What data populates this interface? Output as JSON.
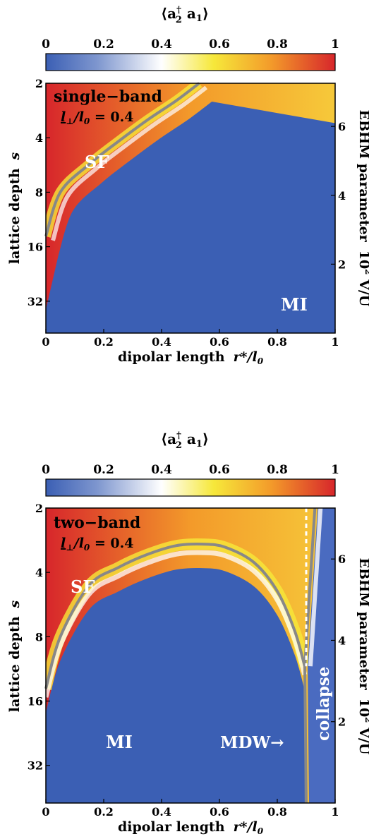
{
  "charts": [
    {
      "colorbar": {
        "title_main": "⟨a",
        "title_sup": "†",
        "title_sub": "2",
        "title_tail": " a",
        "title_sub2": "1",
        "title_close": "⟩",
        "ticks": [
          "0",
          "0.2",
          "0.4",
          "0.6",
          "0.8",
          "1"
        ],
        "range": [
          0,
          1
        ]
      },
      "panel_title": "single−band",
      "param_prefix": "l",
      "param_sub": "⊥",
      "param_mid": "/l",
      "param_sub2": "0",
      "param_value": " = 0.4",
      "region_labels": {
        "sf": "SF",
        "mi": "MI"
      },
      "xlabel_main": "dipolar length",
      "xlabel_var": "r*/l",
      "xlabel_sub": "0",
      "ylabel_main": "lattice depth",
      "ylabel_var": "s",
      "rlabel_main": "EBHM parameter",
      "rlabel_pow": "10",
      "rlabel_exp": "2",
      "rlabel_tail": " V/U",
      "x_ticks": [
        "0",
        "0.2",
        "0.4",
        "0.6",
        "0.8",
        "1"
      ],
      "y_ticks_left": [
        {
          "label": "2",
          "s": 2
        },
        {
          "label": "4",
          "s": 4
        },
        {
          "label": "8",
          "s": 8
        },
        {
          "label": "16",
          "s": 16
        },
        {
          "label": "32",
          "s": 32
        }
      ],
      "y_ticks_right": [
        {
          "label": "6",
          "v": 6
        },
        {
          "label": "4",
          "v": 4
        },
        {
          "label": "2",
          "v": 2
        }
      ]
    },
    {
      "colorbar": {
        "title_main": "⟨a",
        "title_sup": "†",
        "title_sub": "2",
        "title_tail": " a",
        "title_sub2": "1",
        "title_close": "⟩",
        "ticks": [
          "0",
          "0.2",
          "0.4",
          "0.6",
          "0.8",
          "1"
        ],
        "range": [
          0,
          1
        ]
      },
      "panel_title": "two−band",
      "param_prefix": "l",
      "param_sub": "⊥",
      "param_mid": "/l",
      "param_sub2": "0",
      "param_value": " = 0.4",
      "region_labels": {
        "sf": "SF",
        "mi": "MI",
        "mdw": "MDW→",
        "collapse": "collapse"
      },
      "xlabel_main": "dipolar length",
      "xlabel_var": "r*/l",
      "xlabel_sub": "0",
      "ylabel_main": "lattice depth",
      "ylabel_var": "s",
      "rlabel_main": "EBHM parameter",
      "rlabel_pow": "10",
      "rlabel_exp": "2",
      "rlabel_tail": " V/U",
      "x_ticks": [
        "0",
        "0.2",
        "0.4",
        "0.6",
        "0.8",
        "1"
      ],
      "y_ticks_left": [
        {
          "label": "2",
          "s": 2
        },
        {
          "label": "4",
          "s": 4
        },
        {
          "label": "8",
          "s": 8
        },
        {
          "label": "16",
          "s": 16
        },
        {
          "label": "32",
          "s": 32
        }
      ],
      "y_ticks_right": [
        {
          "label": "6",
          "v": 6
        },
        {
          "label": "4",
          "v": 4
        },
        {
          "label": "2",
          "v": 2
        }
      ]
    }
  ],
  "chart_data": [
    {
      "type": "heatmap",
      "colormap": [
        "#3b5fb4",
        "#ffffff",
        "#f6e83a",
        "#f39a2a",
        "#d7262b"
      ],
      "xlim": [
        0,
        1
      ],
      "x": "dipolar length r*/l0",
      "y": "lattice depth s",
      "y_ticks": [
        2,
        4,
        8,
        16,
        32
      ],
      "y2_ticks": [
        2,
        4,
        6
      ],
      "boundary": [
        {
          "x": 0.0,
          "s": 14
        },
        {
          "x": 0.05,
          "s": 8
        },
        {
          "x": 0.15,
          "s": 5.6
        },
        {
          "x": 0.25,
          "s": 4.2
        },
        {
          "x": 0.35,
          "s": 3.2
        },
        {
          "x": 0.45,
          "s": 2.5
        },
        {
          "x": 0.53,
          "s": 2.0
        }
      ]
    },
    {
      "type": "heatmap",
      "colormap": [
        "#3b5fb4",
        "#ffffff",
        "#f6e83a",
        "#f39a2a",
        "#d7262b"
      ],
      "xlim": [
        0,
        1
      ],
      "x": "dipolar length r*/l0",
      "y": "lattice depth s",
      "y_ticks": [
        2,
        4,
        8,
        16,
        32
      ],
      "y2_ticks": [
        2,
        4,
        6
      ],
      "boundary": [
        {
          "x": 0.0,
          "s": 14
        },
        {
          "x": 0.05,
          "s": 8
        },
        {
          "x": 0.15,
          "s": 4.6
        },
        {
          "x": 0.25,
          "s": 3.8
        },
        {
          "x": 0.35,
          "s": 3.3
        },
        {
          "x": 0.45,
          "s": 3.0
        },
        {
          "x": 0.54,
          "s": 2.95
        },
        {
          "x": 0.62,
          "s": 3.05
        },
        {
          "x": 0.72,
          "s": 3.6
        },
        {
          "x": 0.8,
          "s": 4.9
        },
        {
          "x": 0.86,
          "s": 7.5
        },
        {
          "x": 0.895,
          "s": 11
        }
      ],
      "mdw_line": {
        "x": 0.9
      },
      "collapse_line": [
        {
          "x": 0.9,
          "s": 40
        },
        {
          "x": 0.93,
          "s": 2.0
        }
      ]
    }
  ]
}
